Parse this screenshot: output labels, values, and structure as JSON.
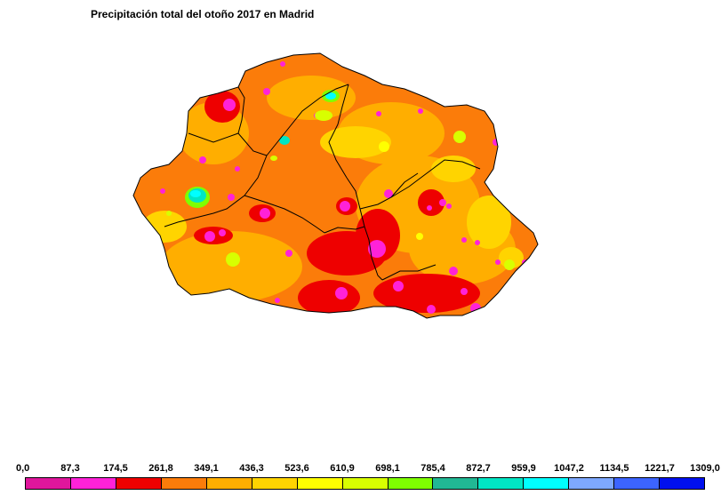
{
  "title": "Precipitación total del otoño 2017 en Madrid",
  "legend": {
    "ticks": [
      "0,0",
      "87,3",
      "174,5",
      "261,8",
      "349,1",
      "436,3",
      "523,6",
      "610,9",
      "698,1",
      "785,4",
      "872,7",
      "959,9",
      "1047,2",
      "1134,5",
      "1221,7",
      "1309,0"
    ],
    "colors": [
      "#e0169c",
      "#ff22d8",
      "#ee0000",
      "#fb7c0a",
      "#ffae00",
      "#ffd400",
      "#ffff00",
      "#d8ff00",
      "#7fff00",
      "#21b894",
      "#00e6c4",
      "#00ffff",
      "#7ea8ff",
      "#3c64ff",
      "#0010ee"
    ]
  },
  "map": {
    "region": "Madrid",
    "base_color": "#ff8c00",
    "hotspot_colors": {
      "magenta": "#ff22d8",
      "red": "#ee0000",
      "cyan": "#00ffff",
      "yellow": "#ffff00",
      "yellowgreen": "#d8ff00"
    }
  }
}
